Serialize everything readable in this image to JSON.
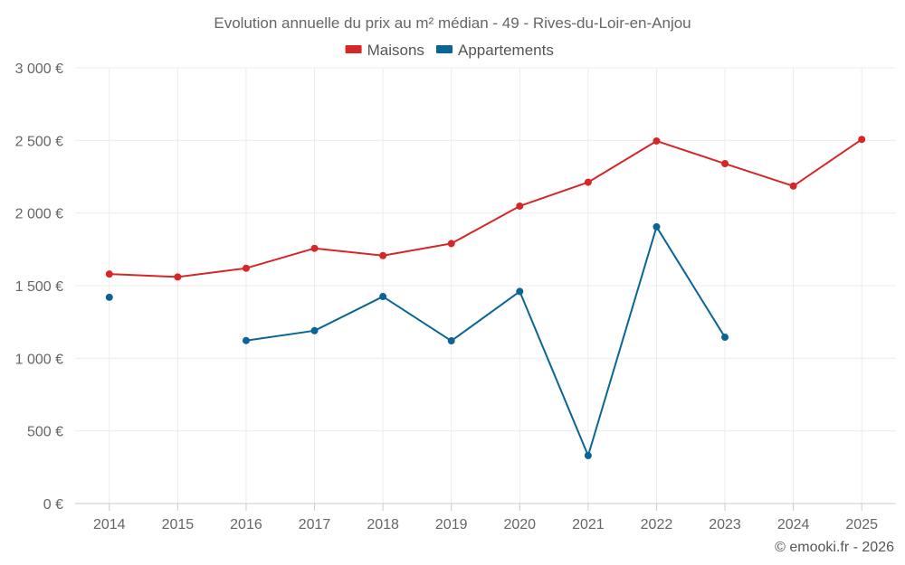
{
  "chart_data": {
    "type": "line",
    "title": "Evolution annuelle du prix au m² médian - 49 - Rives-du-Loir-en-Anjou",
    "categories": [
      "2014",
      "2015",
      "2016",
      "2017",
      "2018",
      "2019",
      "2020",
      "2021",
      "2022",
      "2023",
      "2024",
      "2025"
    ],
    "series": [
      {
        "name": "Maisons",
        "color": "#d62728",
        "values": [
          1580,
          1560,
          1620,
          1757,
          1707,
          1790,
          2048,
          2212,
          2496,
          2340,
          2186,
          2507
        ]
      },
      {
        "name": "Appartements",
        "color": "#0b6594",
        "values": [
          1420,
          null,
          1122,
          1190,
          1425,
          1120,
          1460,
          330,
          1905,
          1145,
          null,
          null
        ]
      }
    ],
    "ylim": [
      0,
      3000
    ],
    "yticks": [
      0,
      500,
      1000,
      1500,
      2000,
      2500,
      3000
    ],
    "ytick_labels": [
      "0 €",
      "500 €",
      "1 000 €",
      "1 500 €",
      "2 000 €",
      "2 500 €",
      "3 000 €"
    ],
    "xlabel": "",
    "ylabel": "",
    "grid": true,
    "legend_position": "top-center"
  },
  "credit": "© emooki.fr - 2026"
}
